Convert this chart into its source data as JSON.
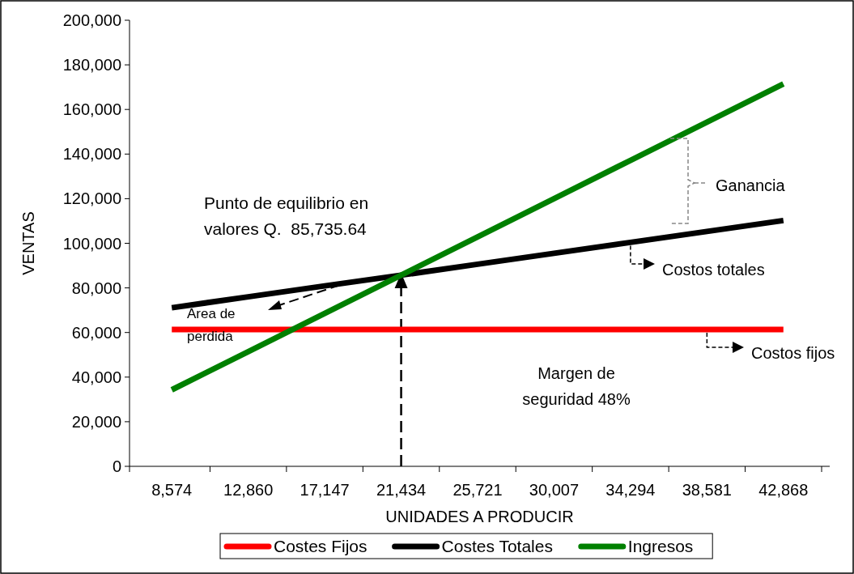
{
  "chart_data": {
    "type": "line",
    "xlabel": "UNIDADES A PRODUCIR",
    "ylabel": "VENTAS",
    "categories": [
      "8,574",
      "12,860",
      "17,147",
      "21,434",
      "25,721",
      "30,007",
      "34,294",
      "38,581",
      "42,868"
    ],
    "series": [
      {
        "name": "Costes Fijos",
        "color": "#ff0000",
        "values": [
          61300,
          61300,
          61300,
          61300,
          61300,
          61300,
          61300,
          61300,
          61300
        ]
      },
      {
        "name": "Costes Totales",
        "color": "#000000",
        "values": [
          71100,
          76000,
          80900,
          85700,
          90600,
          95500,
          100400,
          105300,
          110200
        ]
      },
      {
        "name": "Ingresos",
        "color": "#008000",
        "values": [
          34300,
          51400,
          68600,
          85700,
          102900,
          120000,
          137200,
          154300,
          171500
        ]
      }
    ],
    "ylim": [
      0,
      200000
    ],
    "yticks": [
      {
        "value": 0,
        "label": "0"
      },
      {
        "value": 20000,
        "label": "20,000"
      },
      {
        "value": 40000,
        "label": "40,000"
      },
      {
        "value": 60000,
        "label": "60,000"
      },
      {
        "value": 80000,
        "label": "80,000"
      },
      {
        "value": 100000,
        "label": "100,000"
      },
      {
        "value": 120000,
        "label": "120,000"
      },
      {
        "value": 140000,
        "label": "140,000"
      },
      {
        "value": 160000,
        "label": "160,000"
      },
      {
        "value": 180000,
        "label": "180,000"
      },
      {
        "value": 200000,
        "label": "200,000"
      }
    ],
    "grid": false,
    "legend": "bottom",
    "marker": "none",
    "line_style": "solid",
    "annotations": [
      "Punto de equilibrio en\nvalores Q.  85,735.64",
      "Area de\nperdida",
      "Ganancia",
      {
        "text": "Costos totales",
        "x": "34,294",
        "y": 100400
      },
      {
        "text": "Costos fijos",
        "x": "38,581",
        "y": 61300
      },
      "Margen de\nseguridad 48%"
    ]
  }
}
